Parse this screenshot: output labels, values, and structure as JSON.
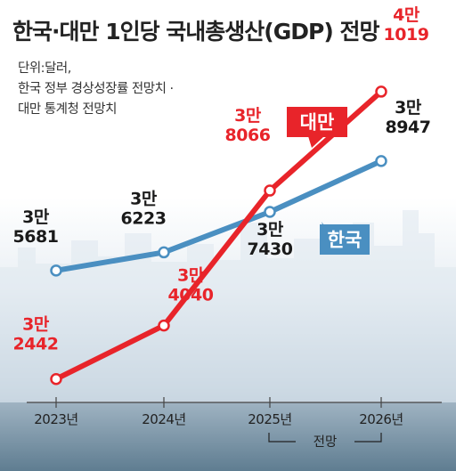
{
  "title": "한국·대만 1인당 국내총생산(GDP) 전망",
  "notes": [
    "단위:달러,",
    "한국 정부 경상성장률 전망치 ·",
    "대만 통계청 전망치"
  ],
  "projection_label": "전망",
  "colors": {
    "korea": "#4a8fc1",
    "taiwan": "#e8242a",
    "axis": "#444444",
    "title": "#222222"
  },
  "chart_data": {
    "type": "line",
    "categories": [
      "2023년",
      "2024년",
      "2025년",
      "2026년"
    ],
    "series": [
      {
        "name": "한국",
        "values": [
          35681,
          36223,
          37430,
          38947
        ],
        "labels": [
          [
            "3만",
            "5681"
          ],
          [
            "3만",
            "6223"
          ],
          [
            "3만",
            "7430"
          ],
          [
            "3만",
            "8947"
          ]
        ]
      },
      {
        "name": "대만",
        "values": [
          32442,
          34040,
          38066,
          41019
        ],
        "labels": [
          [
            "3만",
            "2442"
          ],
          [
            "3만",
            "4040"
          ],
          [
            "3만",
            "8066"
          ],
          [
            "4만",
            "1019"
          ]
        ]
      }
    ],
    "projection": {
      "label": "전망",
      "from": "2025년",
      "to": "2026년"
    },
    "xlabel": "",
    "ylabel": "",
    "grid": false
  }
}
